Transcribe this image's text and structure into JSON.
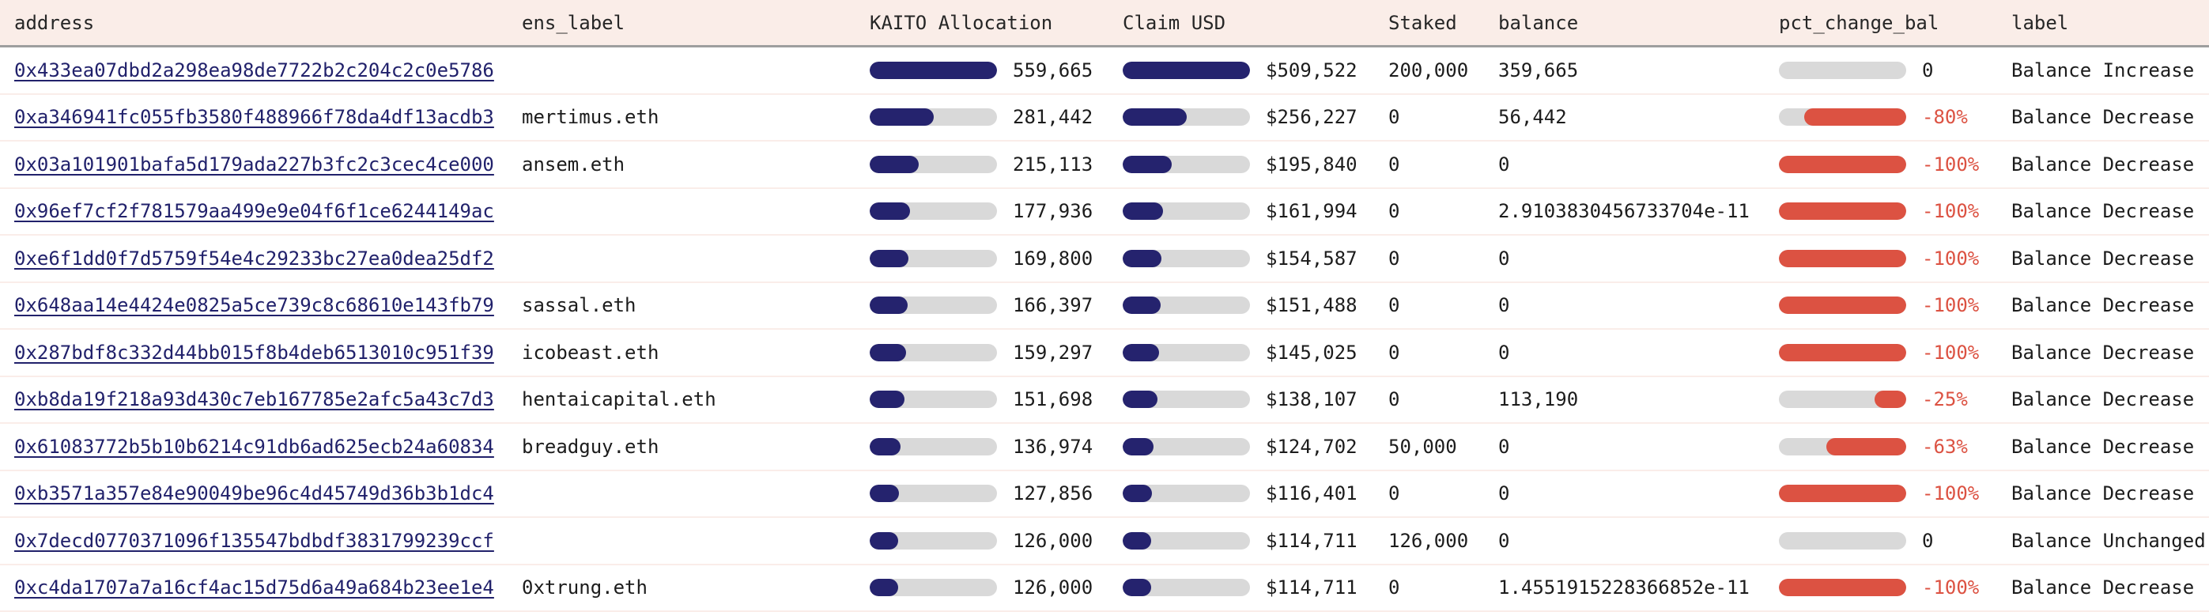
{
  "colors": {
    "header_bg": "#FAEDE8",
    "header_border": "#9E9E9E",
    "row_separator": "#FAEDE9",
    "bar_track": "#D9D9D9",
    "allocation_bar": "#25236E",
    "negative_bar": "#DC5242",
    "negative_text": "#DC5242",
    "link_color": "#21216B",
    "text_color": "#1c1c1c"
  },
  "table": {
    "columns": [
      {
        "key": "address",
        "label": "address"
      },
      {
        "key": "ens_label",
        "label": "ens_label"
      },
      {
        "key": "kaito",
        "label": "KAITO Allocation"
      },
      {
        "key": "claim",
        "label": "Claim USD"
      },
      {
        "key": "staked",
        "label": "Staked"
      },
      {
        "key": "balance",
        "label": "balance"
      },
      {
        "key": "pct",
        "label": "pct_change_bal"
      },
      {
        "key": "label",
        "label": "label"
      }
    ],
    "kaito_max": 559665,
    "claim_max": 509522,
    "rows": [
      {
        "address": "0x433ea07dbd2a298ea98de7722b2c204c2c0e5786",
        "ens_label": "",
        "kaito_display": "559,665",
        "kaito_value": 559665,
        "claim_display": "$509,522",
        "claim_value": 509522,
        "staked": "200,000",
        "balance": "359,665",
        "pct_display": "0",
        "pct_value": 0,
        "label": "Balance Increase"
      },
      {
        "address": "0xa346941fc055fb3580f488966f78da4df13acdb3",
        "ens_label": "mertimus.eth",
        "kaito_display": "281,442",
        "kaito_value": 281442,
        "claim_display": "$256,227",
        "claim_value": 256227,
        "staked": "0",
        "balance": "56,442",
        "pct_display": "-80%",
        "pct_value": -80,
        "label": "Balance Decrease"
      },
      {
        "address": "0x03a101901bafa5d179ada227b3fc2c3cec4ce000",
        "ens_label": "ansem.eth",
        "kaito_display": "215,113",
        "kaito_value": 215113,
        "claim_display": "$195,840",
        "claim_value": 195840,
        "staked": "0",
        "balance": "0",
        "pct_display": "-100%",
        "pct_value": -100,
        "label": "Balance Decrease"
      },
      {
        "address": "0x96ef7cf2f781579aa499e9e04f6f1ce6244149ac",
        "ens_label": "",
        "kaito_display": "177,936",
        "kaito_value": 177936,
        "claim_display": "$161,994",
        "claim_value": 161994,
        "staked": "0",
        "balance": "2.9103830456733704e-11",
        "pct_display": "-100%",
        "pct_value": -100,
        "label": "Balance Decrease"
      },
      {
        "address": "0xe6f1dd0f7d5759f54e4c29233bc27ea0dea25df2",
        "ens_label": "",
        "kaito_display": "169,800",
        "kaito_value": 169800,
        "claim_display": "$154,587",
        "claim_value": 154587,
        "staked": "0",
        "balance": "0",
        "pct_display": "-100%",
        "pct_value": -100,
        "label": "Balance Decrease"
      },
      {
        "address": "0x648aa14e4424e0825a5ce739c8c68610e143fb79",
        "ens_label": "sassal.eth",
        "kaito_display": "166,397",
        "kaito_value": 166397,
        "claim_display": "$151,488",
        "claim_value": 151488,
        "staked": "0",
        "balance": "0",
        "pct_display": "-100%",
        "pct_value": -100,
        "label": "Balance Decrease"
      },
      {
        "address": "0x287bdf8c332d44bb015f8b4deb6513010c951f39",
        "ens_label": "icobeast.eth",
        "kaito_display": "159,297",
        "kaito_value": 159297,
        "claim_display": "$145,025",
        "claim_value": 145025,
        "staked": "0",
        "balance": "0",
        "pct_display": "-100%",
        "pct_value": -100,
        "label": "Balance Decrease"
      },
      {
        "address": "0xb8da19f218a93d430c7eb167785e2afc5a43c7d3",
        "ens_label": "hentaicapital.eth",
        "kaito_display": "151,698",
        "kaito_value": 151698,
        "claim_display": "$138,107",
        "claim_value": 138107,
        "staked": "0",
        "balance": "113,190",
        "pct_display": "-25%",
        "pct_value": -25,
        "label": "Balance Decrease"
      },
      {
        "address": "0x61083772b5b10b6214c91db6ad625ecb24a60834",
        "ens_label": "breadguy.eth",
        "kaito_display": "136,974",
        "kaito_value": 136974,
        "claim_display": "$124,702",
        "claim_value": 124702,
        "staked": "50,000",
        "balance": "0",
        "pct_display": "-63%",
        "pct_value": -63,
        "label": "Balance Decrease"
      },
      {
        "address": "0xb3571a357e84e90049be96c4d45749d36b3b1dc4",
        "ens_label": "",
        "kaito_display": "127,856",
        "kaito_value": 127856,
        "claim_display": "$116,401",
        "claim_value": 116401,
        "staked": "0",
        "balance": "0",
        "pct_display": "-100%",
        "pct_value": -100,
        "label": "Balance Decrease"
      },
      {
        "address": "0x7decd0770371096f135547bdbdf3831799239ccf",
        "ens_label": "",
        "kaito_display": "126,000",
        "kaito_value": 126000,
        "claim_display": "$114,711",
        "claim_value": 114711,
        "staked": "126,000",
        "balance": "0",
        "pct_display": "0",
        "pct_value": 0,
        "label": "Balance Unchanged"
      },
      {
        "address": "0xc4da1707a7a16cf4ac15d75d6a49a684b23ee1e4",
        "ens_label": "0xtrung.eth",
        "kaito_display": "126,000",
        "kaito_value": 126000,
        "claim_display": "$114,711",
        "claim_value": 114711,
        "staked": "0",
        "balance": "1.4551915228366852e-11",
        "pct_display": "-100%",
        "pct_value": -100,
        "label": "Balance Decrease"
      }
    ]
  }
}
